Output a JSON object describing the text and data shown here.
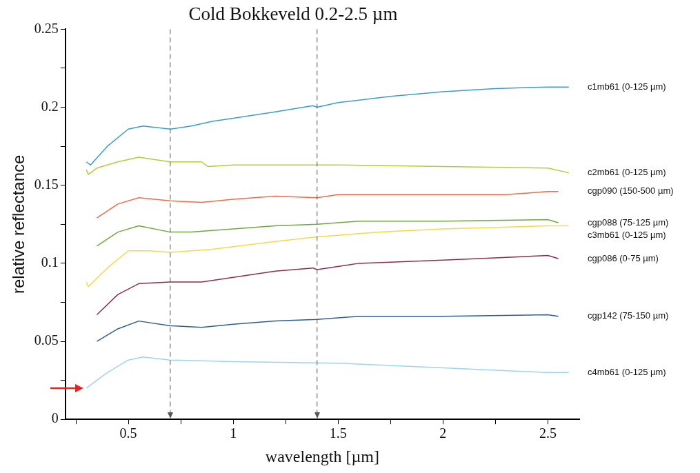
{
  "chart_data": {
    "type": "line",
    "title": "Cold Bokkeveld 0.2-2.5 µm",
    "xlabel": "wavelength [µm]",
    "ylabel": "relative reflectance",
    "xlim": [
      0.2,
      2.65
    ],
    "xticks": [
      {
        "value": 0.25,
        "label": null
      },
      0.5,
      {
        "value": 0.75,
        "label": null
      },
      1,
      {
        "value": 1.25,
        "label": null
      },
      1.5,
      {
        "value": 1.75,
        "label": null
      },
      2,
      {
        "value": 2.25,
        "label": null
      },
      2.5
    ],
    "ylim": [
      0,
      0.25
    ],
    "yticks": [
      0,
      {
        "value": 0.025,
        "label": null
      },
      0.05,
      {
        "value": 0.075,
        "label": null
      },
      0.1,
      {
        "value": 0.125,
        "label": null
      },
      0.15,
      {
        "value": 0.175,
        "label": null
      },
      0.2,
      {
        "value": 0.225,
        "label": null
      },
      0.25
    ],
    "grid": false,
    "legend": false,
    "marker": "none",
    "line_style": "solid",
    "ref_lines": [
      {
        "axis": "x",
        "value": 0.7,
        "color": "#555555",
        "line_style": "dashed"
      },
      {
        "axis": "x",
        "value": 1.4,
        "color": "#555555",
        "line_style": "dashed"
      }
    ],
    "series": [
      {
        "name": "c1mb61 (0-125 µm)",
        "color": "#3a9ccb",
        "x": [
          0.3,
          0.32,
          0.4,
          0.5,
          0.57,
          0.7,
          0.8,
          0.9,
          1.0,
          1.2,
          1.38,
          1.4,
          1.5,
          1.75,
          2.0,
          2.25,
          2.5,
          2.6
        ],
        "values": [
          0.165,
          0.163,
          0.175,
          0.186,
          0.188,
          0.186,
          0.188,
          0.191,
          0.193,
          0.197,
          0.201,
          0.2,
          0.203,
          0.207,
          0.21,
          0.212,
          0.213,
          0.213
        ]
      },
      {
        "name": "c2mb61 (0-125 µm)",
        "color": "#b4cc3a",
        "x": [
          0.3,
          0.31,
          0.35,
          0.45,
          0.55,
          0.7,
          0.85,
          0.88,
          1.0,
          1.5,
          2.0,
          2.5,
          2.6
        ],
        "values": [
          0.16,
          0.157,
          0.161,
          0.165,
          0.168,
          0.165,
          0.165,
          0.162,
          0.163,
          0.163,
          0.162,
          0.161,
          0.158
        ]
      },
      {
        "name": "cgp090 (150-500 µm)",
        "color": "#ef6b4a",
        "x": [
          0.35,
          0.45,
          0.55,
          0.7,
          0.85,
          1.0,
          1.2,
          1.4,
          1.5,
          2.0,
          2.3,
          2.5,
          2.55
        ],
        "values": [
          0.129,
          0.138,
          0.142,
          0.14,
          0.139,
          0.141,
          0.143,
          0.142,
          0.144,
          0.144,
          0.144,
          0.146,
          0.146
        ]
      },
      {
        "name": "cgp088 (75-125 µm)",
        "color": "#6fa83e",
        "x": [
          0.35,
          0.45,
          0.55,
          0.7,
          0.8,
          1.0,
          1.2,
          1.4,
          1.6,
          2.0,
          2.5,
          2.55
        ],
        "values": [
          0.111,
          0.12,
          0.124,
          0.12,
          0.12,
          0.122,
          0.124,
          0.125,
          0.127,
          0.127,
          0.128,
          0.126
        ]
      },
      {
        "name": "c3mb61 (0-125 µm)",
        "color": "#f5d848",
        "x": [
          0.3,
          0.31,
          0.4,
          0.5,
          0.6,
          0.7,
          0.9,
          1.2,
          1.4,
          1.7,
          2.0,
          2.5,
          2.6
        ],
        "values": [
          0.088,
          0.085,
          0.097,
          0.108,
          0.108,
          0.107,
          0.109,
          0.114,
          0.117,
          0.12,
          0.122,
          0.124,
          0.124
        ]
      },
      {
        "name": "cgp086 (0-75 µm)",
        "color": "#8b2e4e",
        "x": [
          0.35,
          0.45,
          0.55,
          0.7,
          0.85,
          1.0,
          1.2,
          1.38,
          1.4,
          1.6,
          2.0,
          2.5,
          2.55
        ],
        "values": [
          0.067,
          0.08,
          0.087,
          0.088,
          0.088,
          0.091,
          0.095,
          0.097,
          0.096,
          0.1,
          0.102,
          0.105,
          0.103
        ]
      },
      {
        "name": "cgp142 (75-150 µm)",
        "color": "#2d5d93",
        "x": [
          0.35,
          0.45,
          0.55,
          0.7,
          0.85,
          1.0,
          1.2,
          1.4,
          1.6,
          2.0,
          2.5,
          2.55
        ],
        "values": [
          0.05,
          0.058,
          0.063,
          0.06,
          0.059,
          0.061,
          0.063,
          0.064,
          0.066,
          0.066,
          0.067,
          0.066
        ]
      },
      {
        "name": "c4mb61 (0-125 µm)",
        "color": "#9fd3ee",
        "x": [
          0.3,
          0.4,
          0.5,
          0.57,
          0.7,
          1.0,
          1.5,
          2.0,
          2.5,
          2.6
        ],
        "values": [
          0.02,
          0.03,
          0.038,
          0.04,
          0.038,
          0.037,
          0.036,
          0.033,
          0.03,
          0.03
        ]
      }
    ]
  }
}
